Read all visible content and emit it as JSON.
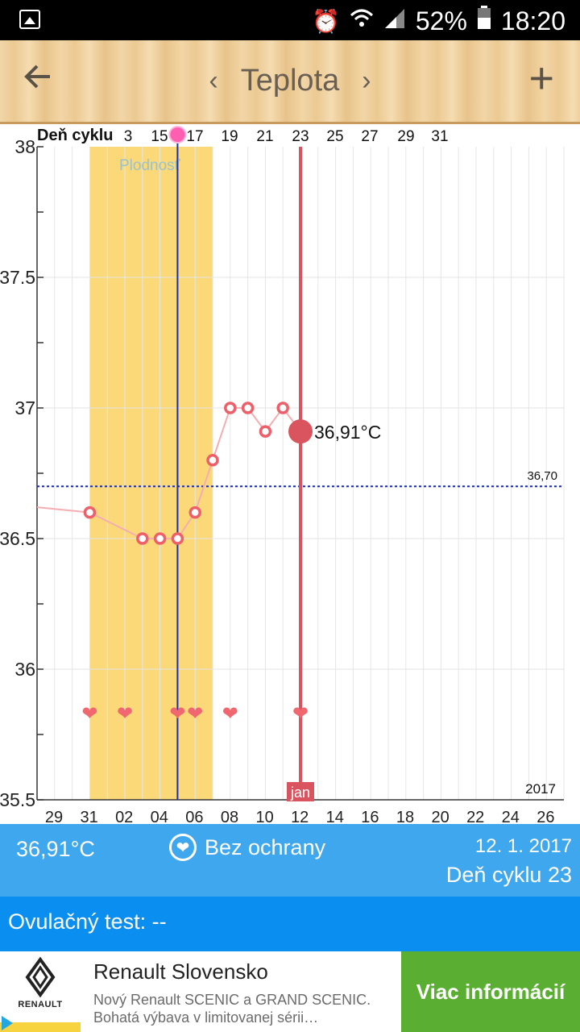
{
  "status": {
    "battery": "52%",
    "time": "18:20"
  },
  "appbar": {
    "title": "Teplota"
  },
  "chart_data": {
    "type": "line",
    "title": "",
    "xlabel": "",
    "ylabel": "",
    "cycle_label": "Deň cyklu",
    "cycle_ticks": [
      "3",
      "15",
      "17",
      "19",
      "21",
      "23",
      "25",
      "27",
      "29",
      "31"
    ],
    "date_ticks": [
      "29",
      "31",
      "02",
      "04",
      "06",
      "08",
      "10",
      "12",
      "14",
      "16",
      "18",
      "20",
      "22",
      "24",
      "26"
    ],
    "y_ticks": [
      "38",
      "37.5",
      "37",
      "36.5",
      "36",
      "35.5"
    ],
    "ylim": [
      35.5,
      38
    ],
    "fertile_label": "Plodnosť",
    "fertile_range": [
      "2016-12-31",
      "2017-01-07"
    ],
    "ovulation_date": "2017-01-05",
    "baseline": {
      "value": 36.7,
      "label": "36,70"
    },
    "selected": {
      "date": "2017-01-12",
      "value": 36.91,
      "label": "36,91°C",
      "month_label": "jan"
    },
    "year_label": "2017",
    "series": [
      {
        "x": [
          "2016-12-28",
          "2016-12-31",
          "2017-01-03",
          "2017-01-04",
          "2017-01-05",
          "2017-01-06",
          "2017-01-07",
          "2017-01-08",
          "2017-01-09",
          "2017-01-10",
          "2017-01-11",
          "2017-01-12"
        ],
        "values": [
          36.62,
          36.6,
          36.5,
          36.5,
          36.5,
          36.6,
          36.8,
          37.0,
          37.0,
          36.91,
          37.0,
          36.91
        ]
      }
    ],
    "heart_dates": [
      "2016-12-31",
      "2017-01-02",
      "2017-01-05",
      "2017-01-06",
      "2017-01-08",
      "2017-01-12"
    ],
    "colors": {
      "fertile": "#fbd978",
      "ovulation_line": "#1e2fa8",
      "selected_line": "#d9545e",
      "point": "#ee5f6a",
      "heart": "#f1676f",
      "baseline": "#1b2aa6"
    }
  },
  "info": {
    "temp": "36,91°C",
    "protection": "Bez ochrany",
    "date": "12. 1. 2017",
    "cycle_day": "Deň cyklu 23"
  },
  "ovulation": {
    "label": "Ovulačný test: --"
  },
  "ad": {
    "title": "Renault Slovensko",
    "line1": "Nový Renault SCENIC a GRAND SCENIC.",
    "line2": "Bohatá výbava v limitovanej sérii…",
    "cta": "Viac informácií",
    "brand": "RENAULT"
  }
}
